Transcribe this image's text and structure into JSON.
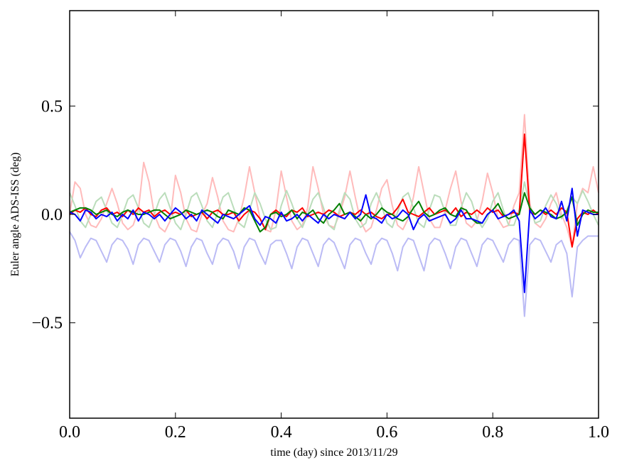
{
  "chart_data": {
    "type": "line",
    "xlabel": "time (day) since 2013/11/29",
    "ylabel": "Euler angle ADS-ISS (deg)",
    "xlim": [
      0,
      1
    ],
    "ylim": [
      -0.94,
      0.94
    ],
    "xticks": [
      {
        "value": 0,
        "label": "0.0"
      },
      0.2,
      0.4,
      0.6,
      0.8,
      {
        "value": 1,
        "label": "1.0"
      }
    ],
    "yticks": [
      {
        "value": -0.5,
        "label": "−0.5"
      },
      {
        "value": 0,
        "label": "0.0"
      },
      0.5
    ],
    "x": [
      0,
      0.01,
      0.02,
      0.03,
      0.04,
      0.05,
      0.06,
      0.07,
      0.08,
      0.09,
      0.1,
      0.11,
      0.12,
      0.13,
      0.14,
      0.15,
      0.16,
      0.17,
      0.18,
      0.19,
      0.2,
      0.21,
      0.22,
      0.23,
      0.24,
      0.25,
      0.26,
      0.27,
      0.28,
      0.29,
      0.3,
      0.31,
      0.32,
      0.33,
      0.34,
      0.35,
      0.36,
      0.37,
      0.38,
      0.39,
      0.4,
      0.41,
      0.42,
      0.43,
      0.44,
      0.45,
      0.46,
      0.47,
      0.48,
      0.49,
      0.5,
      0.51,
      0.52,
      0.53,
      0.54,
      0.55,
      0.56,
      0.57,
      0.58,
      0.59,
      0.6,
      0.61,
      0.62,
      0.63,
      0.64,
      0.65,
      0.66,
      0.67,
      0.68,
      0.69,
      0.7,
      0.71,
      0.72,
      0.73,
      0.74,
      0.75,
      0.76,
      0.77,
      0.78,
      0.79,
      0.8,
      0.81,
      0.82,
      0.83,
      0.84,
      0.85,
      0.86,
      0.87,
      0.88,
      0.89,
      0.9,
      0.91,
      0.92,
      0.93,
      0.94,
      0.95,
      0.96,
      0.97,
      0.98,
      0.99,
      1
    ],
    "series": [
      {
        "color": "#ffbbbb",
        "values": [
          0.0,
          0.15,
          0.12,
          0.0,
          -0.05,
          -0.06,
          -0.02,
          0.05,
          0.12,
          0.05,
          -0.04,
          -0.07,
          -0.05,
          0.02,
          0.24,
          0.15,
          0.0,
          -0.06,
          -0.08,
          -0.03,
          0.18,
          0.1,
          -0.02,
          -0.07,
          -0.08,
          0.0,
          0.05,
          0.17,
          0.08,
          -0.03,
          -0.07,
          -0.08,
          -0.02,
          0.08,
          0.22,
          0.1,
          -0.02,
          -0.07,
          -0.08,
          0.02,
          0.2,
          0.08,
          -0.03,
          -0.07,
          -0.05,
          0.03,
          0.22,
          0.12,
          0.0,
          -0.05,
          -0.06,
          0.0,
          0.08,
          0.2,
          0.08,
          -0.03,
          -0.08,
          -0.06,
          0.02,
          0.12,
          0.16,
          0.04,
          -0.05,
          -0.07,
          -0.02,
          0.08,
          0.22,
          0.1,
          -0.02,
          -0.06,
          -0.06,
          0.02,
          0.12,
          0.2,
          0.06,
          -0.04,
          -0.06,
          -0.03,
          0.06,
          0.19,
          0.1,
          -0.02,
          -0.06,
          -0.05,
          0.04,
          0.1,
          0.46,
          0.05,
          -0.04,
          -0.06,
          -0.02,
          0.05,
          0.1,
          0.0,
          -0.06,
          -0.15,
          0.05,
          0.12,
          0.1,
          0.22,
          0.1
        ]
      },
      {
        "color": "#bbddbb",
        "values": [
          0.1,
          0.04,
          -0.03,
          -0.06,
          0.0,
          0.06,
          0.08,
          0.02,
          -0.04,
          -0.06,
          0.0,
          0.07,
          0.09,
          0.03,
          -0.04,
          -0.06,
          0.0,
          0.07,
          0.1,
          0.03,
          -0.04,
          -0.07,
          0.0,
          0.08,
          0.1,
          0.04,
          -0.03,
          -0.06,
          0.01,
          0.08,
          0.1,
          0.03,
          -0.04,
          -0.06,
          0.02,
          0.1,
          0.05,
          -0.02,
          -0.07,
          -0.06,
          0.04,
          0.11,
          0.05,
          -0.02,
          -0.06,
          0.0,
          0.07,
          0.1,
          0.03,
          -0.05,
          -0.07,
          0.02,
          0.1,
          0.07,
          -0.02,
          -0.06,
          -0.04,
          0.05,
          0.1,
          0.04,
          -0.04,
          -0.06,
          0.01,
          0.08,
          0.1,
          0.03,
          -0.04,
          -0.06,
          0.02,
          0.09,
          0.08,
          0.01,
          -0.05,
          -0.05,
          0.03,
          0.1,
          0.06,
          -0.02,
          -0.06,
          -0.02,
          0.06,
          0.1,
          0.02,
          -0.05,
          -0.05,
          0.02,
          0.15,
          0.04,
          -0.04,
          -0.03,
          0.04,
          0.09,
          0.05,
          -0.02,
          0.02,
          0.08,
          0.05,
          0.11,
          0.06,
          0.0,
          -0.05
        ]
      },
      {
        "color": "#bbbbf5",
        "values": [
          -0.08,
          -0.12,
          -0.2,
          -0.15,
          -0.11,
          -0.12,
          -0.17,
          -0.22,
          -0.14,
          -0.11,
          -0.12,
          -0.16,
          -0.23,
          -0.14,
          -0.11,
          -0.12,
          -0.17,
          -0.22,
          -0.14,
          -0.11,
          -0.12,
          -0.17,
          -0.24,
          -0.15,
          -0.11,
          -0.12,
          -0.18,
          -0.23,
          -0.14,
          -0.11,
          -0.12,
          -0.17,
          -0.25,
          -0.15,
          -0.11,
          -0.12,
          -0.18,
          -0.23,
          -0.14,
          -0.12,
          -0.12,
          -0.18,
          -0.25,
          -0.15,
          -0.11,
          -0.12,
          -0.18,
          -0.24,
          -0.14,
          -0.11,
          -0.13,
          -0.19,
          -0.25,
          -0.14,
          -0.11,
          -0.12,
          -0.18,
          -0.23,
          -0.14,
          -0.11,
          -0.12,
          -0.18,
          -0.26,
          -0.15,
          -0.11,
          -0.12,
          -0.19,
          -0.26,
          -0.14,
          -0.11,
          -0.12,
          -0.18,
          -0.25,
          -0.15,
          -0.11,
          -0.12,
          -0.18,
          -0.24,
          -0.14,
          -0.11,
          -0.12,
          -0.17,
          -0.22,
          -0.14,
          -0.11,
          -0.12,
          -0.47,
          -0.14,
          -0.11,
          -0.12,
          -0.17,
          -0.22,
          -0.14,
          -0.12,
          -0.18,
          -0.38,
          -0.15,
          -0.12,
          -0.1,
          -0.1,
          -0.1
        ]
      },
      {
        "color": "#ff0000",
        "values": [
          0.0,
          0.02,
          0.01,
          0.03,
          0.0,
          -0.01,
          0.02,
          0.03,
          0.0,
          0.01,
          -0.01,
          0.02,
          0.0,
          0.03,
          0.01,
          0.02,
          -0.01,
          0.01,
          0.02,
          0.0,
          0.01,
          0.0,
          0.02,
          -0.01,
          0.0,
          0.01,
          -0.02,
          0.01,
          0.02,
          0.0,
          0.0,
          0.01,
          -0.03,
          0.0,
          0.02,
          0.01,
          -0.02,
          -0.07,
          0.0,
          0.02,
          0.0,
          -0.01,
          0.02,
          0.01,
          0.03,
          -0.01,
          0.0,
          0.01,
          0.0,
          0.02,
          0.01,
          -0.01,
          0.0,
          0.01,
          0.0,
          0.02,
          0.0,
          0.01,
          -0.01,
          -0.02,
          0.0,
          0.0,
          0.03,
          0.07,
          0.01,
          0.0,
          -0.01,
          0.01,
          0.03,
          0.0,
          0.01,
          0.02,
          0.0,
          0.03,
          -0.01,
          0.01,
          0.0,
          0.02,
          0.0,
          0.03,
          0.01,
          0.02,
          -0.01,
          0.0,
          0.01,
          0.0,
          0.37,
          0.01,
          0.0,
          0.02,
          0.0,
          0.02,
          0.0,
          0.03,
          0.01,
          -0.15,
          -0.02,
          0.01,
          0.0,
          0.02,
          0.0
        ]
      },
      {
        "color": "#008000",
        "values": [
          0.01,
          0.02,
          0.03,
          0.03,
          0.02,
          0.0,
          0.01,
          0.02,
          0.0,
          -0.01,
          0.01,
          0.02,
          0.01,
          0.0,
          0.0,
          0.01,
          0.02,
          0.02,
          0.0,
          -0.02,
          -0.01,
          0.0,
          0.02,
          0.01,
          0.0,
          0.01,
          0.02,
          0.01,
          -0.01,
          -0.02,
          0.02,
          0.01,
          0.0,
          0.03,
          0.02,
          -0.03,
          -0.08,
          -0.06,
          0.0,
          0.01,
          -0.01,
          0.0,
          0.02,
          -0.02,
          0.01,
          0.0,
          0.02,
          -0.02,
          -0.04,
          0.0,
          0.02,
          0.05,
          0.0,
          0.01,
          -0.01,
          -0.03,
          0.0,
          -0.02,
          0.0,
          0.03,
          0.01,
          0.0,
          -0.02,
          -0.03,
          -0.01,
          0.03,
          0.06,
          0.01,
          -0.01,
          0.0,
          0.02,
          0.03,
          0.0,
          -0.01,
          0.03,
          0.02,
          -0.02,
          -0.04,
          -0.04,
          0.0,
          0.02,
          0.05,
          0.0,
          -0.02,
          -0.01,
          0.0,
          0.1,
          0.03,
          0.0,
          0.02,
          0.01,
          0.0,
          -0.02,
          -0.01,
          0.01,
          0.08,
          -0.05,
          0.0,
          0.02,
          0.01,
          0.01
        ]
      },
      {
        "color": "#0000ff",
        "values": [
          0.01,
          0.0,
          -0.03,
          0.02,
          0.01,
          -0.02,
          0.0,
          -0.01,
          0.01,
          -0.03,
          0.0,
          -0.02,
          0.02,
          -0.03,
          0.01,
          0.0,
          -0.02,
          0.0,
          -0.03,
          0.0,
          0.03,
          0.01,
          -0.02,
          0.0,
          -0.03,
          0.02,
          0.0,
          -0.02,
          -0.04,
          0.0,
          -0.01,
          -0.02,
          0.0,
          0.02,
          0.04,
          -0.02,
          -0.05,
          -0.01,
          -0.02,
          -0.04,
          0.01,
          -0.03,
          -0.02,
          0.0,
          -0.03,
          0.0,
          -0.02,
          -0.04,
          0.0,
          -0.02,
          0.0,
          -0.01,
          -0.02,
          0.01,
          -0.02,
          0.0,
          0.09,
          -0.01,
          -0.02,
          -0.04,
          0.0,
          -0.02,
          -0.01,
          0.02,
          0.0,
          -0.07,
          -0.02,
          0.0,
          -0.03,
          -0.02,
          -0.01,
          0.0,
          -0.04,
          -0.02,
          0.02,
          -0.02,
          -0.02,
          -0.03,
          -0.04,
          0.0,
          0.02,
          -0.02,
          -0.01,
          0.0,
          0.02,
          -0.03,
          -0.36,
          0.02,
          -0.02,
          0.0,
          0.03,
          -0.01,
          -0.02,
          0.06,
          -0.03,
          0.12,
          -0.1,
          0.02,
          0.01,
          0.0,
          0.0
        ]
      }
    ]
  }
}
